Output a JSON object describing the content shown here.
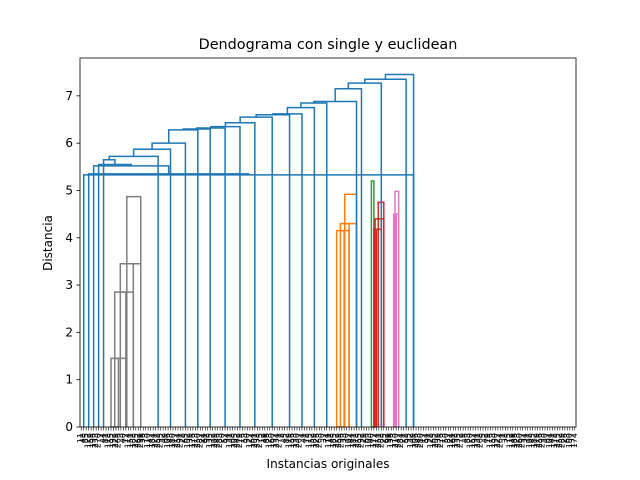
{
  "chart_data": {
    "type": "dendrogram",
    "title": "Dendograma con single y euclidean",
    "xlabel": "Instancias originales",
    "ylabel": "Distancia",
    "ylim": [
      0,
      7.8
    ],
    "yticks": [
      0,
      1,
      2,
      3,
      4,
      5,
      6,
      7
    ],
    "grid": false,
    "leaf_count": 200,
    "above_threshold_color": "#1f77b4",
    "clusters": [
      {
        "color": "#7f7f7f",
        "merges": [
          {
            "leaves": [
              0,
              1
            ],
            "y": 1.45
          },
          {
            "leaves": [
              1,
              2
            ],
            "y": 2.85
          },
          {
            "leaves": [
              2,
              3
            ],
            "y": 3.45
          },
          {
            "leaves": [
              3,
              4
            ],
            "y": 4.87
          }
        ]
      },
      {
        "color": "#ff7f0e",
        "merges": [
          {
            "leaves": [
              0,
              1
            ],
            "y": 4.15
          },
          {
            "leaves": [
              1,
              2
            ],
            "y": 4.3
          },
          {
            "leaves": [
              2,
              3
            ],
            "y": 4.92
          }
        ]
      },
      {
        "color": "#2ca02c",
        "merges": [
          {
            "leaves": [
              0,
              1
            ],
            "y": 5.2
          }
        ]
      },
      {
        "color": "#d62728",
        "merges": [
          {
            "leaves": [
              0,
              1
            ],
            "y": 4.18
          },
          {
            "leaves": [
              1,
              2
            ],
            "y": 4.4
          },
          {
            "leaves": [
              2,
              3
            ],
            "y": 4.75
          }
        ]
      },
      {
        "color": "#e377c2",
        "merges": [
          {
            "leaves": [
              0,
              1
            ],
            "y": 4.5
          },
          {
            "leaves": [
              1,
              2
            ],
            "y": 4.98
          }
        ]
      }
    ],
    "top_merge_heights": [
      7.45,
      7.35,
      7.27,
      7.15,
      6.88,
      6.85,
      6.75,
      6.62,
      6.6,
      6.55,
      6.43,
      6.35,
      6.32,
      6.3,
      6.28,
      6.0,
      5.87,
      5.72,
      5.65,
      5.55,
      5.52,
      5.35,
      5.33
    ]
  }
}
